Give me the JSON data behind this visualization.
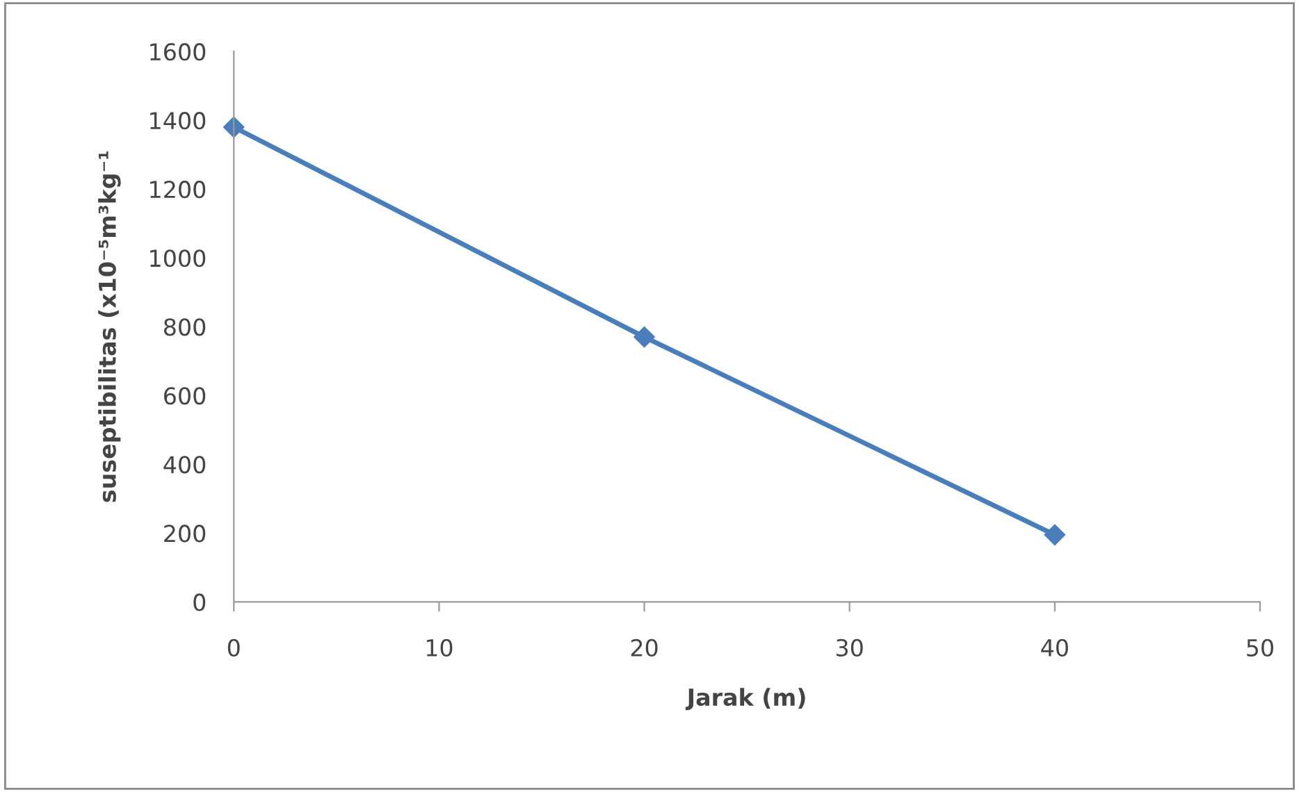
{
  "chart_data": {
    "type": "line",
    "xlabel": "Jarak (m)",
    "ylabel": "suseptibilitas (x10⁻⁵m³kg⁻¹",
    "x": [
      0,
      20,
      40
    ],
    "series": [
      {
        "color": "#4a7ebb",
        "values": [
          1380,
          770,
          195
        ]
      }
    ],
    "xlim": [
      0,
      50
    ],
    "xticks": [
      0,
      10,
      20,
      30,
      40,
      50
    ],
    "ylim": [
      0,
      1600
    ],
    "yticks": [
      0,
      200,
      400,
      600,
      800,
      1000,
      1200,
      1400,
      1600
    ],
    "grid": false,
    "legend": false,
    "marker": "diamond",
    "line_style": "solid"
  }
}
